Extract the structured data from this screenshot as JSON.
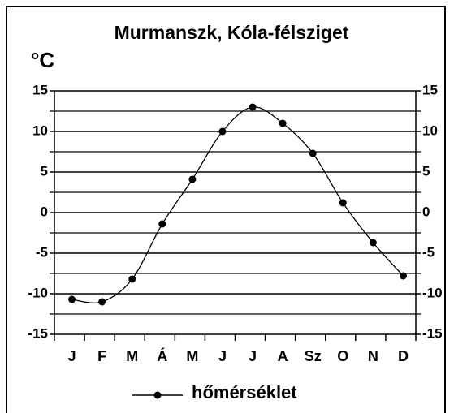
{
  "chart_data": {
    "type": "line",
    "title": "Murmanszk, Kóla-félsziget",
    "y_label": "°C",
    "categories": [
      "J",
      "F",
      "M",
      "Á",
      "M",
      "J",
      "J",
      "A",
      "Sz",
      "O",
      "N",
      "D"
    ],
    "series": [
      {
        "name": "hőmérséklet",
        "color": "#000000",
        "values": [
          -10.7,
          -11.0,
          -8.2,
          -1.4,
          4.1,
          10.0,
          13.0,
          11.0,
          7.3,
          1.2,
          -3.7,
          -7.8
        ]
      }
    ],
    "ylim": [
      -15,
      15
    ],
    "yticks": [
      -15,
      -10,
      -5,
      0,
      5,
      10,
      15
    ],
    "minor_yticks": [
      -12.5,
      -7.5,
      -2.5,
      2.5,
      7.5,
      12.5
    ],
    "grid": true,
    "legend": "bottom"
  }
}
